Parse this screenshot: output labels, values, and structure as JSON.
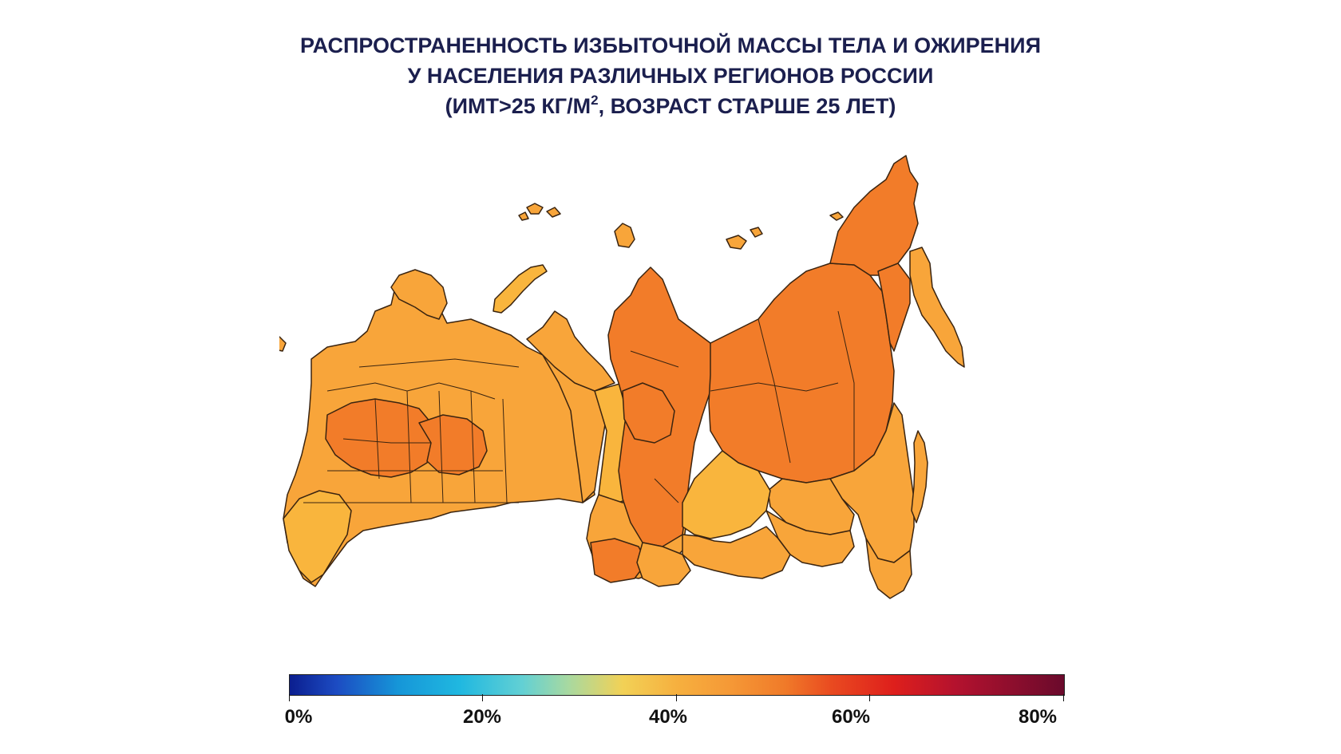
{
  "title": {
    "line1": "РАСПРОСТРАНЕННОСТЬ ИЗБЫТОЧНОЙ МАССЫ ТЕЛА И ОЖИРЕНИЯ",
    "line2": "У НАСЕЛЕНИЯ РАЗЛИЧНЫХ РЕГИОНОВ РОССИИ",
    "line3_a": "(ИМТ>25 КГ/М",
    "line3_sup": "2",
    "line3_b": ",  ВОЗРАСТ СТАРШЕ 25 ЛЕТ)"
  },
  "colors": {
    "fill_lighter": "#f9b53d",
    "fill_light": "#f8a53a",
    "fill_mid": "#f59634",
    "fill_dark": "#f27c29",
    "border": "#3a2410"
  },
  "legend": {
    "type": "colorbar",
    "range": [
      0,
      80
    ],
    "ticks": [
      "0%",
      "20%",
      "40%",
      "60%",
      "80%"
    ]
  }
}
